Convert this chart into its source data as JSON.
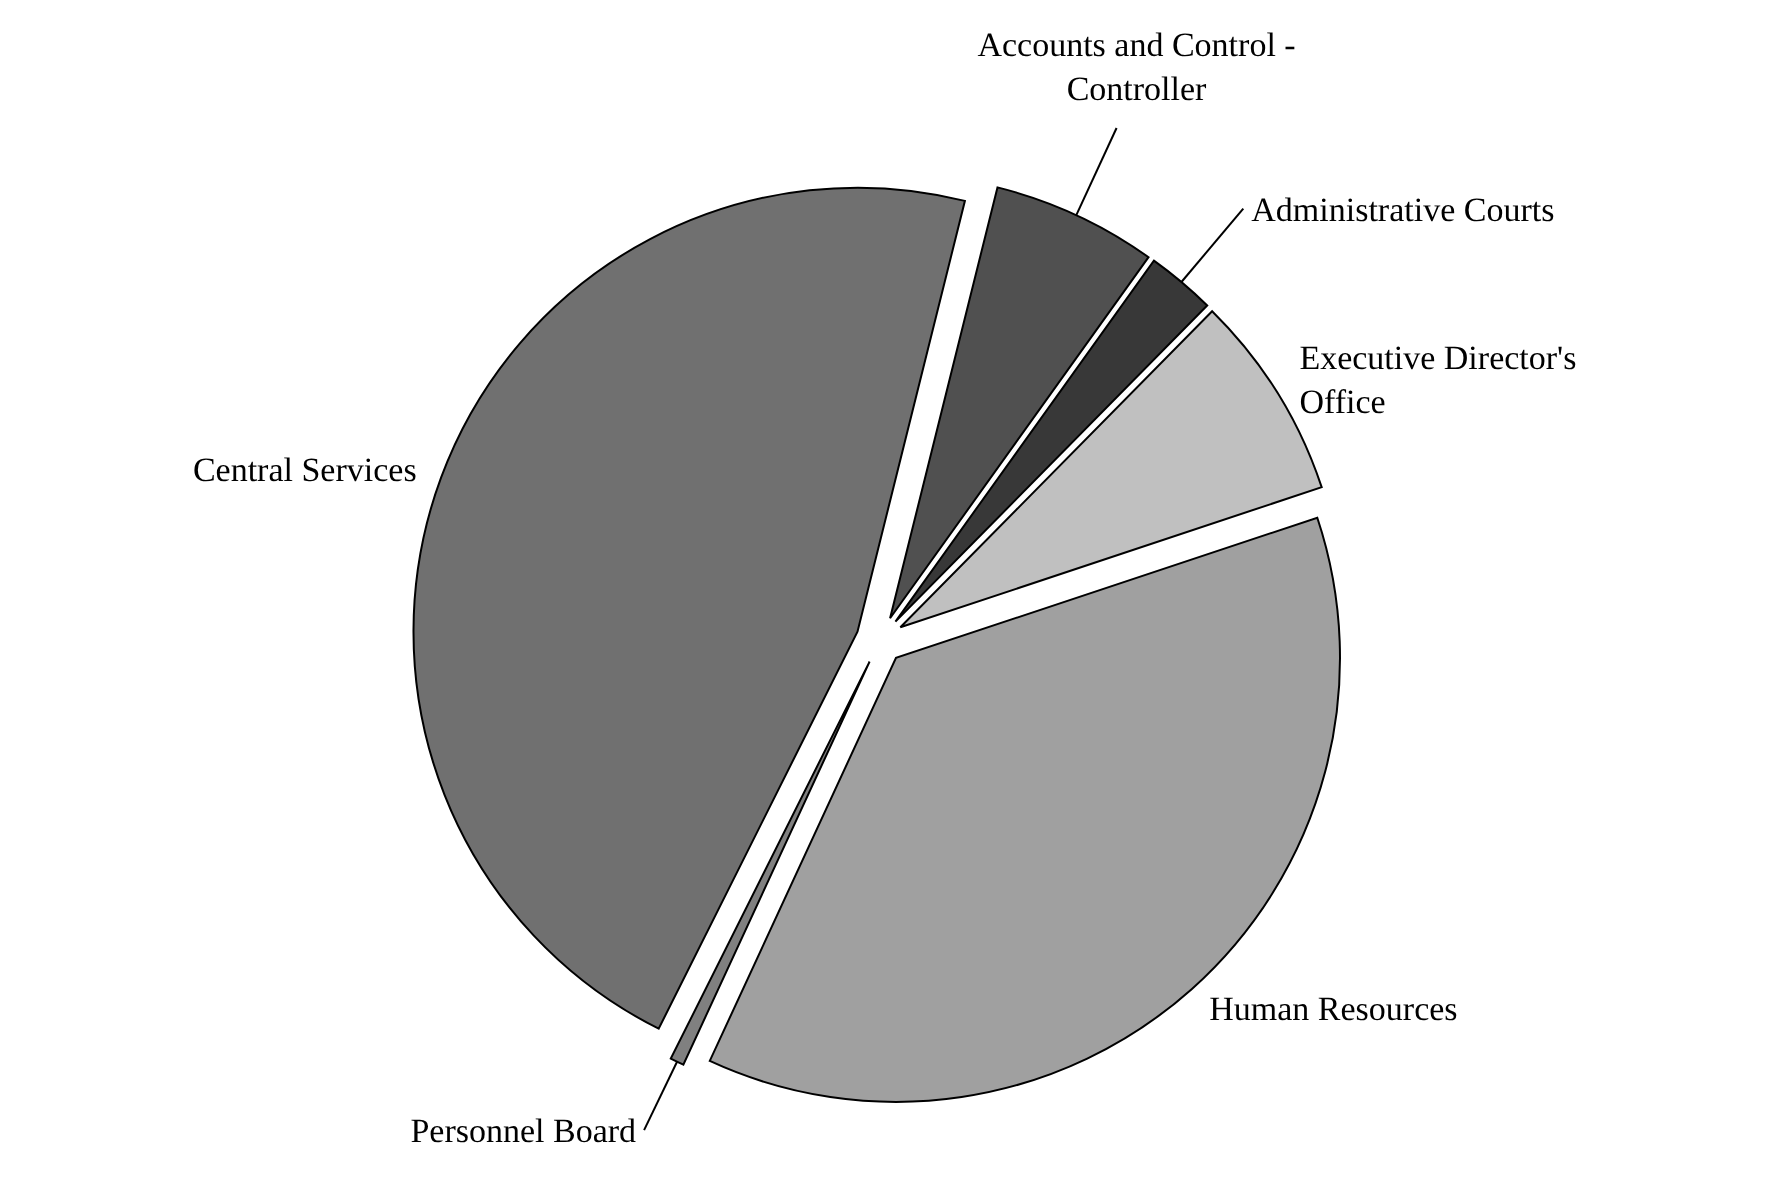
{
  "chart_data": {
    "type": "pie",
    "categories": [
      "Accounts and Control - Controller",
      "Administrative Courts",
      "Executive Director's Office",
      "Human Resources",
      "Personnel Board",
      "Central Services"
    ],
    "values": [
      6,
      2.5,
      7.5,
      37,
      0.5,
      46.5
    ],
    "colors": [
      "#505050",
      "#383838",
      "#c0c0c0",
      "#a0a0a0",
      "#808080",
      "#707070"
    ]
  }
}
